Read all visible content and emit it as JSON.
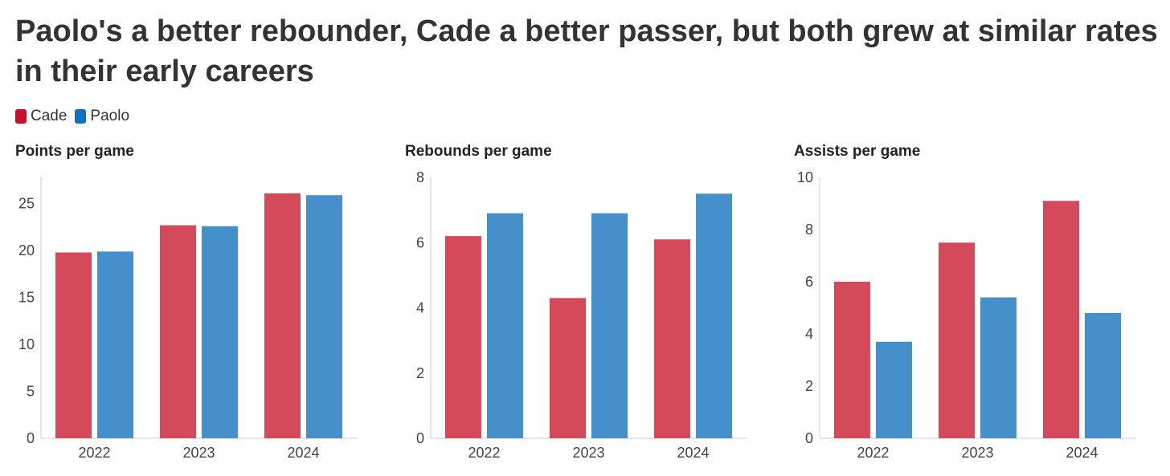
{
  "title": "Paolo's a better rebounder, Cade a better passer, but both grew at similar rates in their early careers",
  "legend": [
    {
      "label": "Cade",
      "color": "#d44a5a"
    },
    {
      "label": "Paolo",
      "color": "#4590cb"
    }
  ],
  "colors": {
    "cade": "#d44a5a",
    "paolo": "#4590cb",
    "legend_cade": "#c8102e",
    "legend_paolo": "#1170c4",
    "axis": "#dddddd"
  },
  "chart_data": [
    {
      "type": "bar",
      "title": "Points per game",
      "categories": [
        "2022",
        "2023",
        "2024"
      ],
      "series": [
        {
          "name": "Cade",
          "values": [
            19.8,
            22.7,
            26.1
          ]
        },
        {
          "name": "Paolo",
          "values": [
            19.9,
            22.6,
            25.9
          ]
        }
      ],
      "ylim": [
        0,
        28
      ],
      "yticks": [
        0,
        5,
        10,
        15,
        20,
        25
      ],
      "xlabel": "",
      "ylabel": ""
    },
    {
      "type": "bar",
      "title": "Rebounds per game",
      "categories": [
        "2022",
        "2023",
        "2024"
      ],
      "series": [
        {
          "name": "Cade",
          "values": [
            6.2,
            4.3,
            6.1
          ]
        },
        {
          "name": "Paolo",
          "values": [
            6.9,
            6.9,
            7.5
          ]
        }
      ],
      "ylim": [
        0,
        8
      ],
      "yticks": [
        0,
        2,
        4,
        6,
        8
      ],
      "xlabel": "",
      "ylabel": ""
    },
    {
      "type": "bar",
      "title": "Assists per game",
      "categories": [
        "2022",
        "2023",
        "2024"
      ],
      "series": [
        {
          "name": "Cade",
          "values": [
            6.0,
            7.5,
            9.1
          ]
        },
        {
          "name": "Paolo",
          "values": [
            3.7,
            5.4,
            4.8
          ]
        }
      ],
      "ylim": [
        0,
        10
      ],
      "yticks": [
        0,
        2,
        4,
        6,
        8,
        10
      ],
      "xlabel": "",
      "ylabel": ""
    }
  ]
}
